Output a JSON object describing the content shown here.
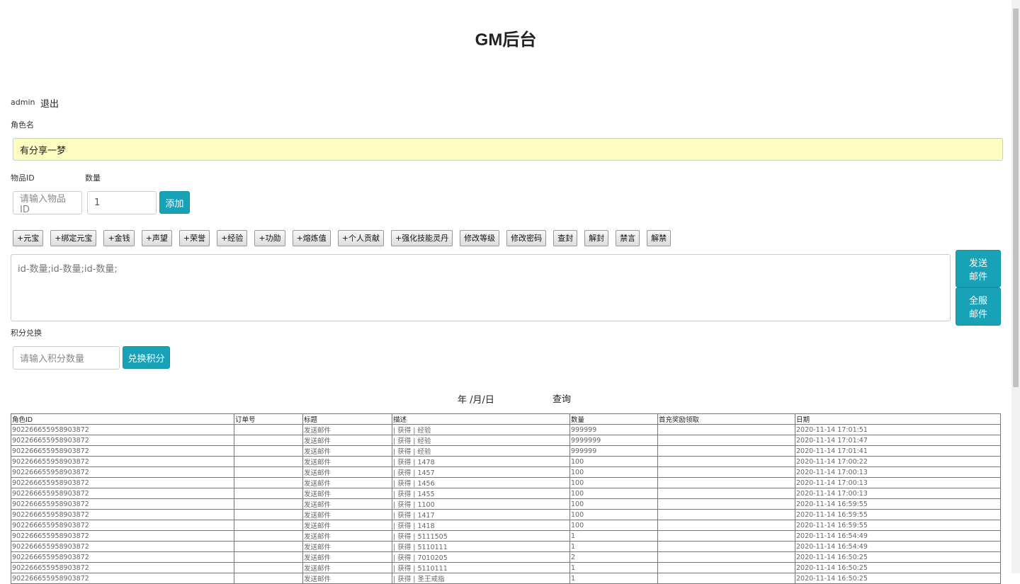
{
  "header": {
    "title": "GM后台"
  },
  "user": {
    "name": "admin",
    "logout": "退出"
  },
  "role": {
    "label": "角色名",
    "value": "有分享一梦"
  },
  "item": {
    "id_label": "物品ID",
    "qty_label": "数量",
    "id_placeholder": "请输入物品ID",
    "qty_value": "1",
    "add": "添加"
  },
  "actions": [
    "+元宝",
    "+绑定元宝",
    "+金钱",
    "+声望",
    "+荣誉",
    "+经验",
    "+功勋",
    "+熔炼值",
    "+个人贡献",
    "+强化技能灵丹",
    "修改等级",
    "修改密码",
    "查封",
    "解封",
    "禁言",
    "解禁"
  ],
  "mail": {
    "placeholder": "id-数量;id-数量;id-数量;",
    "send": "发送邮件",
    "send_all": "全服邮件"
  },
  "points": {
    "label": "积分兑换",
    "placeholder": "请输入积分数量",
    "button": "兑换积分"
  },
  "query": {
    "date_placeholder": "年 /月/日",
    "button": "查询"
  },
  "table": {
    "headers": [
      "角色ID",
      "订单号",
      "标题",
      "描述",
      "数量",
      "首充奖励领取",
      "日期"
    ],
    "rows": [
      [
        "902266655958903872",
        "",
        "发送邮件",
        "| 获得 | 经验",
        "999999",
        "",
        "2020-11-14 17:01:51"
      ],
      [
        "902266655958903872",
        "",
        "发送邮件",
        "| 获得 | 经验",
        "9999999",
        "",
        "2020-11-14 17:01:47"
      ],
      [
        "902266655958903872",
        "",
        "发送邮件",
        "| 获得 | 经验",
        "999999",
        "",
        "2020-11-14 17:01:41"
      ],
      [
        "902266655958903872",
        "",
        "发送邮件",
        "| 获得 | 1478",
        "100",
        "",
        "2020-11-14 17:00:22"
      ],
      [
        "902266655958903872",
        "",
        "发送邮件",
        "| 获得 | 1457",
        "100",
        "",
        "2020-11-14 17:00:13"
      ],
      [
        "902266655958903872",
        "",
        "发送邮件",
        "| 获得 | 1456",
        "100",
        "",
        "2020-11-14 17:00:13"
      ],
      [
        "902266655958903872",
        "",
        "发送邮件",
        "| 获得 | 1455",
        "100",
        "",
        "2020-11-14 17:00:13"
      ],
      [
        "902266655958903872",
        "",
        "发送邮件",
        "| 获得 | 1100",
        "100",
        "",
        "2020-11-14 16:59:55"
      ],
      [
        "902266655958903872",
        "",
        "发送邮件",
        "| 获得 | 1417",
        "100",
        "",
        "2020-11-14 16:59:55"
      ],
      [
        "902266655958903872",
        "",
        "发送邮件",
        "| 获得 | 1418",
        "100",
        "",
        "2020-11-14 16:59:55"
      ],
      [
        "902266655958903872",
        "",
        "发送邮件",
        "| 获得 | 5111505",
        "1",
        "",
        "2020-11-14 16:54:49"
      ],
      [
        "902266655958903872",
        "",
        "发送邮件",
        "| 获得 | 5110111",
        "1",
        "",
        "2020-11-14 16:54:49"
      ],
      [
        "902266655958903872",
        "",
        "发送邮件",
        "| 获得 | 7010205",
        "2",
        "",
        "2020-11-14 16:50:25"
      ],
      [
        "902266655958903872",
        "",
        "发送邮件",
        "| 获得 | 5110111",
        "1",
        "",
        "2020-11-14 16:50:25"
      ],
      [
        "902266655958903872",
        "",
        "发送邮件",
        "| 获得 | 圣王戒指",
        "1",
        "",
        "2020-11-14 16:50:25"
      ]
    ]
  }
}
